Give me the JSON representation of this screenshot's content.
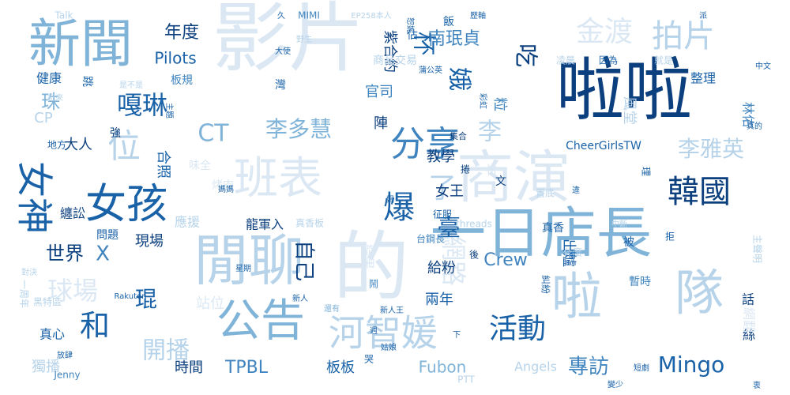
{
  "chart_data": {
    "type": "wordcloud",
    "palette": [
      "#0b3f7e",
      "#1a62a8",
      "#3f84bf",
      "#7fb3d8",
      "#b6d3ea",
      "#dbe8f4"
    ],
    "words": [
      {
        "text": "啦啦",
        "weight": 10,
        "shade": 0
      },
      {
        "text": "影片",
        "weight": 10,
        "shade": 5
      },
      {
        "text": "的",
        "weight": 10,
        "shade": 5
      },
      {
        "text": "新聞",
        "weight": 8,
        "shade": 3
      },
      {
        "text": "閒聊",
        "weight": 8,
        "shade": 4
      },
      {
        "text": "一日店長",
        "weight": 8,
        "shade": 3
      },
      {
        "text": "商演",
        "weight": 8,
        "shade": 5
      },
      {
        "text": "啦",
        "weight": 7,
        "shade": 4
      },
      {
        "text": "隊",
        "weight": 7,
        "shade": 4
      },
      {
        "text": "班表",
        "weight": 7,
        "shade": 5
      },
      {
        "text": "公告",
        "weight": 7,
        "shade": 3
      },
      {
        "text": "女孩",
        "weight": 6,
        "shade": 1
      },
      {
        "text": "分享",
        "weight": 6,
        "shade": 2
      },
      {
        "text": "河智媛",
        "weight": 6,
        "shade": 4
      },
      {
        "text": "女神",
        "weight": 5,
        "shade": 1
      },
      {
        "text": "韓國",
        "weight": 5,
        "shade": 0
      },
      {
        "text": "位",
        "weight": 5,
        "shade": 4
      },
      {
        "text": "和",
        "weight": 5,
        "shade": 1
      },
      {
        "text": "爆",
        "weight": 5,
        "shade": 1
      },
      {
        "text": "活動",
        "weight": 5,
        "shade": 1
      },
      {
        "text": "拍片",
        "weight": 5,
        "shade": 4
      },
      {
        "text": "金渡",
        "weight": 5,
        "shade": 5
      },
      {
        "text": "嘎琳",
        "weight": 4,
        "shade": 1
      },
      {
        "text": "李多慧",
        "weight": 4,
        "shade": 3
      },
      {
        "text": "李雅英",
        "weight": 4,
        "shade": 4
      },
      {
        "text": "CT",
        "weight": 4,
        "shade": 3
      },
      {
        "text": "球場",
        "weight": 4,
        "shade": 5
      },
      {
        "text": "網路",
        "weight": 4,
        "shade": 5
      },
      {
        "text": "開播",
        "weight": 4,
        "shade": 4
      },
      {
        "text": "娥",
        "weight": 4,
        "shade": 1
      },
      {
        "text": "吃",
        "weight": 4,
        "shade": 0
      },
      {
        "text": "杯",
        "weight": 4,
        "shade": 1
      },
      {
        "text": "臺",
        "weight": 4,
        "shade": 1
      },
      {
        "text": "了",
        "weight": 4,
        "shade": 4
      },
      {
        "text": "李",
        "weight": 4,
        "shade": 4
      },
      {
        "text": "專訪",
        "weight": 3,
        "shade": 2
      },
      {
        "text": "Mingo",
        "weight": 3,
        "shade": 1
      },
      {
        "text": "南珉貞",
        "weight": 3,
        "shade": 2
      },
      {
        "text": "年度",
        "weight": 3,
        "shade": 0
      },
      {
        "text": "世界",
        "weight": 3,
        "shade": 0
      },
      {
        "text": "X",
        "weight": 3,
        "shade": 2
      },
      {
        "text": "珠",
        "weight": 3,
        "shade": 3
      },
      {
        "text": "琨",
        "weight": 3,
        "shade": 1
      },
      {
        "text": "自己",
        "weight": 3,
        "shade": 0
      },
      {
        "text": "Crew",
        "weight": 3,
        "shade": 2
      },
      {
        "text": "TPBL",
        "weight": 3,
        "shade": 2
      },
      {
        "text": "Fubon",
        "weight": 3,
        "shade": 3
      },
      {
        "text": "Pilots",
        "weight": 2,
        "shade": 1
      },
      {
        "text": "CheerGirlsTW",
        "weight": 2,
        "shade": 1
      },
      {
        "text": "龍軍入",
        "weight": 2,
        "shade": 0
      },
      {
        "text": "Angels",
        "weight": 2,
        "shade": 4
      },
      {
        "text": "教學",
        "weight": 2,
        "shade": 0
      },
      {
        "text": "女王",
        "weight": 2,
        "shade": 0
      },
      {
        "text": "兩年",
        "weight": 2,
        "shade": 1
      },
      {
        "text": "給粉",
        "weight": 2,
        "shade": 0
      },
      {
        "text": "時間",
        "weight": 2,
        "shade": 0
      },
      {
        "text": "板板",
        "weight": 2,
        "shade": 1
      },
      {
        "text": "大人",
        "weight": 2,
        "shade": 0
      },
      {
        "text": "現場",
        "weight": 2,
        "shade": 0
      },
      {
        "text": "應援",
        "weight": 2,
        "shade": 4
      },
      {
        "text": "纏訟",
        "weight": 2,
        "shade": 0
      },
      {
        "text": "官司",
        "weight": 2,
        "shade": 2
      },
      {
        "text": "陣",
        "weight": 2,
        "shade": 0
      },
      {
        "text": "粒",
        "weight": 2,
        "shade": 2
      },
      {
        "text": "紫合約",
        "weight": 2,
        "shade": 0
      },
      {
        "text": "出爐",
        "weight": 2,
        "shade": 1
      },
      {
        "text": "林佑",
        "weight": 2,
        "shade": 2
      },
      {
        "text": "風堂",
        "weight": 2,
        "shade": 4
      },
      {
        "text": "整理",
        "weight": 2,
        "shade": 1
      },
      {
        "text": "合照",
        "weight": 2,
        "shade": 1
      },
      {
        "text": "結果",
        "weight": 2,
        "shade": 5
      },
      {
        "text": "年",
        "weight": 2,
        "shade": 5
      },
      {
        "text": "真心",
        "weight": 2,
        "shade": 1
      },
      {
        "text": "獨播",
        "weight": 2,
        "shade": 4
      },
      {
        "text": "健康",
        "weight": 2,
        "shade": 1
      },
      {
        "text": "CP",
        "weight": 2,
        "shade": 4
      },
      {
        "text": "站位",
        "weight": 2,
        "shade": 5
      },
      {
        "text": "話",
        "weight": 2,
        "shade": 0
      },
      {
        "text": "絲",
        "weight": 2,
        "shade": 0
      },
      {
        "text": "網翻",
        "weight": 2,
        "shade": 5
      },
      {
        "text": "問題",
        "weight": 1,
        "shade": 1
      },
      {
        "text": "板規",
        "weight": 1,
        "shade": 2
      },
      {
        "text": "商品交易",
        "weight": 1,
        "shade": 4
      },
      {
        "text": "因為",
        "weight": 1,
        "shade": 1
      },
      {
        "text": "就是",
        "weight": 1,
        "shade": 4
      },
      {
        "text": "凌晨",
        "weight": 1,
        "shade": 4
      },
      {
        "text": "真香",
        "weight": 1,
        "shade": 1
      },
      {
        "text": "置底",
        "weight": 1,
        "shade": 4
      },
      {
        "text": "捲",
        "weight": 1,
        "shade": 0
      },
      {
        "text": "集合",
        "weight": 1,
        "shade": 0
      },
      {
        "text": "台鋼長",
        "weight": 1,
        "shade": 2
      },
      {
        "text": "threads",
        "weight": 1,
        "shade": 4
      },
      {
        "text": "征服",
        "weight": 1,
        "shade": 1
      },
      {
        "text": "後",
        "weight": 1,
        "shade": 0
      },
      {
        "text": "被",
        "weight": 1,
        "shade": 1
      },
      {
        "text": "拒",
        "weight": 1,
        "shade": 1
      },
      {
        "text": "暫時",
        "weight": 1,
        "shade": 2
      },
      {
        "text": "糾紛",
        "weight": 1,
        "shade": 1
      },
      {
        "text": "什麼",
        "weight": 1,
        "shade": 4
      },
      {
        "text": "新人",
        "weight": 1,
        "shade": 1
      },
      {
        "text": "新人王",
        "weight": 1,
        "shade": 1
      },
      {
        "text": "還有",
        "weight": 1,
        "shade": 3
      },
      {
        "text": "哭",
        "weight": 1,
        "shade": 1
      },
      {
        "text": "PTT",
        "weight": 1,
        "shade": 4
      },
      {
        "text": "Jenny",
        "weight": 1,
        "shade": 2
      },
      {
        "text": "Rakuten",
        "weight": 1,
        "shade": 1
      },
      {
        "text": "MIMI",
        "weight": 1,
        "shade": 2
      },
      {
        "text": "EP258本人",
        "weight": 1,
        "shade": 4
      },
      {
        "text": "Talk",
        "weight": 1,
        "shade": 4
      },
      {
        "text": "地方",
        "weight": 1,
        "shade": 1
      },
      {
        "text": "強",
        "weight": 1,
        "shade": 0
      },
      {
        "text": "跳",
        "weight": 1,
        "shade": 1
      },
      {
        "text": "黑特區",
        "weight": 1,
        "shade": 4
      },
      {
        "text": "烤肉",
        "weight": 1,
        "shade": 5
      },
      {
        "text": "味全",
        "weight": 1,
        "shade": 5
      },
      {
        "text": "真香板",
        "weight": 1,
        "shade": 4
      },
      {
        "text": "文",
        "weight": 1,
        "shade": 0
      },
      {
        "text": "佔",
        "weight": 1,
        "shade": 1
      },
      {
        "text": "飯",
        "weight": 1,
        "shade": 1
      },
      {
        "text": "大使",
        "weight": 1,
        "shade": 1
      },
      {
        "text": "灣",
        "weight": 1,
        "shade": 1
      },
      {
        "text": "姑娘",
        "weight": 1,
        "shade": 1
      },
      {
        "text": "彩虹",
        "weight": 1,
        "shade": 1
      },
      {
        "text": "蒲公英",
        "weight": 1,
        "shade": 1
      },
      {
        "text": "違",
        "weight": 1,
        "shade": 1
      },
      {
        "text": "中文",
        "weight": 1,
        "shade": 1
      },
      {
        "text": "真的",
        "weight": 1,
        "shade": 1
      },
      {
        "text": "派",
        "weight": 1,
        "shade": 1
      },
      {
        "text": "短劇",
        "weight": 1,
        "shade": 1
      },
      {
        "text": "變少",
        "weight": 1,
        "shade": 1
      },
      {
        "text": "衷",
        "weight": 1,
        "shade": 1
      },
      {
        "text": "對決",
        "weight": 1,
        "shade": 4
      },
      {
        "text": "放肆",
        "weight": 1,
        "shade": 1
      },
      {
        "text": "媽媽",
        "weight": 1,
        "shade": 1
      },
      {
        "text": "主題",
        "weight": 1,
        "shade": 1
      },
      {
        "text": "星期",
        "weight": 1,
        "shade": 1
      },
      {
        "text": "主聲明",
        "weight": 1,
        "shade": 4
      },
      {
        "text": "中斷",
        "weight": 1,
        "shade": 4
      },
      {
        "text": "妨",
        "weight": 1,
        "shade": 1
      },
      {
        "text": "理",
        "weight": 1,
        "shade": 1
      },
      {
        "text": "歷軸",
        "weight": 1,
        "shade": 1
      },
      {
        "text": "恕妮",
        "weight": 1,
        "shade": 1
      },
      {
        "text": "娟",
        "weight": 1,
        "shade": 1
      },
      {
        "text": "週",
        "weight": 1,
        "shade": 1
      },
      {
        "text": "下",
        "weight": 1,
        "shade": 1
      },
      {
        "text": "鬧",
        "weight": 1,
        "shade": 2
      },
      {
        "text": "祝來",
        "weight": 1,
        "shade": 4
      },
      {
        "text": "野生",
        "weight": 1,
        "shade": 4
      },
      {
        "text": "久",
        "weight": 1,
        "shade": 1
      },
      {
        "text": "是不是",
        "weight": 1,
        "shade": 4
      },
      {
        "text": "一周年",
        "weight": 1,
        "shade": 4
      }
    ]
  }
}
